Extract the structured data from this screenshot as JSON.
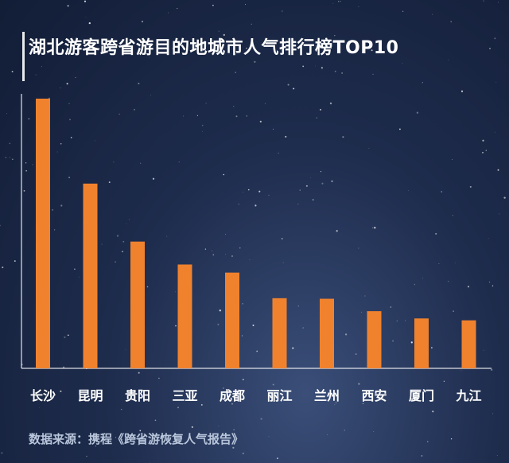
{
  "title": "湖北游客跨省游目的地城市人气排行榜TOP10",
  "source": "数据来源：携程《跨省游恢复人气报告》",
  "colors": {
    "bar": "#f0822e",
    "text": "#ffffff",
    "source_text": "#b9c6db"
  },
  "chart_data": {
    "type": "bar",
    "title": "湖北游客跨省游目的地城市人气排行榜TOP10",
    "xlabel": "",
    "ylabel": "",
    "ylim": [
      0,
      100
    ],
    "grid": false,
    "legend": "none",
    "categories": [
      "长沙",
      "昆明",
      "贵阳",
      "三亚",
      "成都",
      "丽江",
      "兰州",
      "西安",
      "厦门",
      "九江"
    ],
    "values": [
      100,
      68.5,
      47,
      38.5,
      35.5,
      26,
      25.8,
      21.2,
      18.5,
      17.8
    ]
  }
}
